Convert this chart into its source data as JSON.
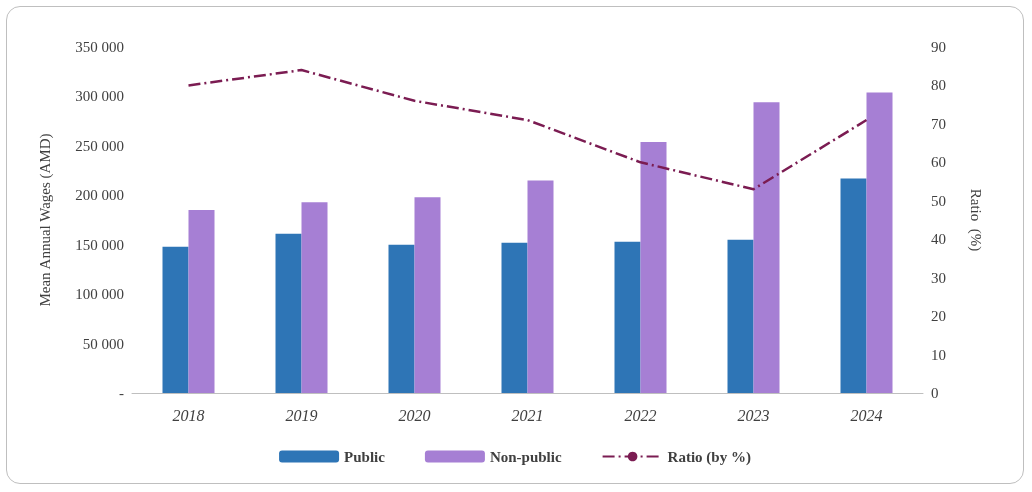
{
  "chart_data": {
    "type": "bar",
    "categories": [
      "2018",
      "2019",
      "2020",
      "2021",
      "2022",
      "2023",
      "2024"
    ],
    "ylabel": "Mean Annual Wages (AMD)",
    "y2label": "Ratio  (%)",
    "series": [
      {
        "name": "Public",
        "color": "#2e75b6",
        "values": [
          148000,
          161000,
          150000,
          152000,
          153000,
          155000,
          217000
        ]
      },
      {
        "name": "Non-public",
        "color": "#a67fd4",
        "values": [
          185000,
          193000,
          198000,
          215000,
          254000,
          294000,
          304000
        ]
      },
      {
        "name": "Ratio (by %)",
        "type": "line",
        "axis": "y2",
        "color": "#7b1c52",
        "line_style": "dashed",
        "marker": "none",
        "values": [
          80,
          84,
          76,
          71,
          60,
          53,
          71
        ]
      }
    ],
    "ylim": [
      0,
      350000
    ],
    "yticks": [
      {
        "value": 0,
        "label": "-"
      },
      {
        "value": 50000,
        "label": "50 000"
      },
      {
        "value": 100000,
        "label": "100 000"
      },
      {
        "value": 150000,
        "label": "150 000"
      },
      {
        "value": 200000,
        "label": "200 000"
      },
      {
        "value": 250000,
        "label": "250 000"
      },
      {
        "value": 300000,
        "label": "300 000"
      },
      {
        "value": 350000,
        "label": "350 000"
      }
    ],
    "y2lim": [
      0,
      90
    ],
    "y2ticks": [
      0,
      10,
      20,
      30,
      40,
      50,
      60,
      70,
      80,
      90
    ],
    "grid": false,
    "legend": "bottom"
  }
}
